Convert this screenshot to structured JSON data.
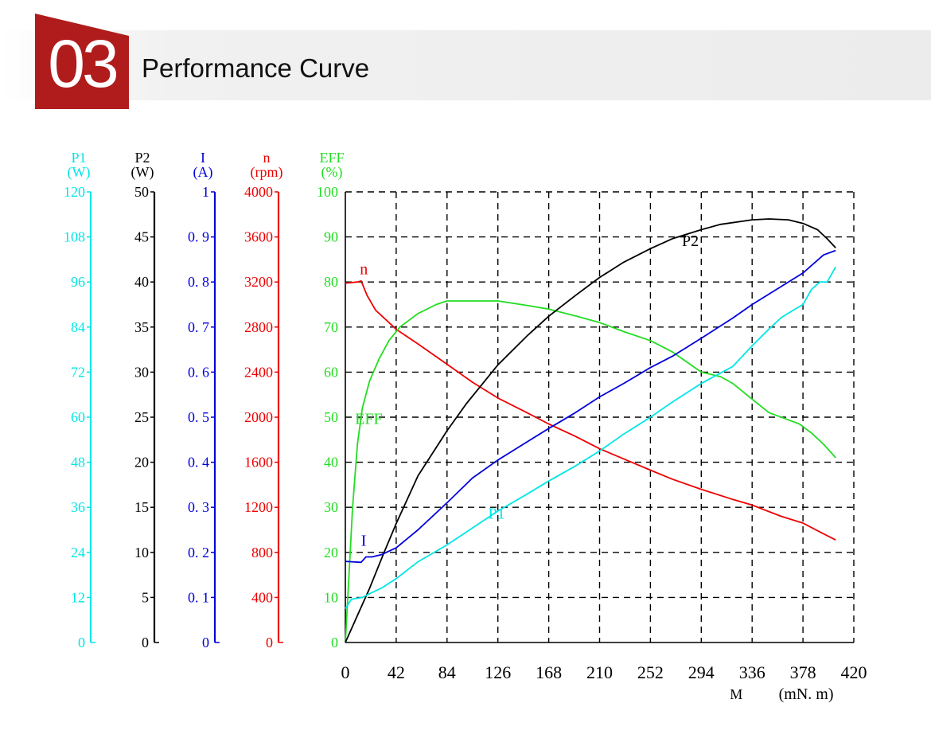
{
  "header": {
    "section_number": "03",
    "title": "Performance Curve",
    "badge_color": "#b01c1c"
  },
  "chart_data": {
    "type": "line",
    "grid": "dashed",
    "x_axis": {
      "ticks": [
        "0",
        "42",
        "84",
        "126",
        "168",
        "210",
        "252",
        "294",
        "336",
        "378",
        "420"
      ],
      "label": "M",
      "unit": "(mN. m)",
      "range": [
        0,
        420
      ]
    },
    "y_axes": [
      {
        "id": "P1",
        "label": "P1",
        "unit": "(W)",
        "color": "#00e6e6",
        "range": [
          0,
          120
        ],
        "ticks": [
          "0",
          "12",
          "24",
          "36",
          "48",
          "60",
          "72",
          "84",
          "96",
          "108",
          "120"
        ]
      },
      {
        "id": "P2",
        "label": "P2",
        "unit": "(W)",
        "color": "#000000",
        "range": [
          0,
          50
        ],
        "ticks": [
          "0",
          "5",
          "10",
          "15",
          "20",
          "25",
          "30",
          "35",
          "40",
          "45",
          "50"
        ]
      },
      {
        "id": "I",
        "label": "I",
        "unit": "(A)",
        "color": "#0000dd",
        "range": [
          0,
          1
        ],
        "ticks": [
          "0",
          "0. 1",
          "0. 2",
          "0. 3",
          "0. 4",
          "0. 5",
          "0. 6",
          "0. 7",
          "0. 8",
          "0. 9",
          "1"
        ]
      },
      {
        "id": "n",
        "label": "n",
        "unit": "(rpm)",
        "color": "#ee0000",
        "range": [
          0,
          4000
        ],
        "ticks": [
          "0",
          "400",
          "800",
          "1200",
          "1600",
          "2000",
          "2400",
          "2800",
          "3200",
          "3600",
          "4000"
        ]
      },
      {
        "id": "EFF",
        "label": "EFF",
        "unit": "(%)",
        "color": "#22dd22",
        "range": [
          0,
          100
        ],
        "ticks": [
          "0",
          "10",
          "20",
          "30",
          "40",
          "50",
          "60",
          "70",
          "80",
          "90",
          "100"
        ]
      }
    ],
    "series": [
      {
        "name": "n",
        "axis": "n",
        "color": "#ee0000",
        "label_at": [
          12,
          3270
        ],
        "points": [
          [
            0,
            3190
          ],
          [
            10,
            3200
          ],
          [
            13,
            3210
          ],
          [
            18,
            3080
          ],
          [
            25,
            2950
          ],
          [
            35,
            2850
          ],
          [
            42,
            2780
          ],
          [
            60,
            2650
          ],
          [
            84,
            2470
          ],
          [
            105,
            2310
          ],
          [
            126,
            2170
          ],
          [
            150,
            2040
          ],
          [
            168,
            1940
          ],
          [
            190,
            1830
          ],
          [
            210,
            1720
          ],
          [
            230,
            1630
          ],
          [
            252,
            1530
          ],
          [
            270,
            1450
          ],
          [
            294,
            1360
          ],
          [
            320,
            1270
          ],
          [
            336,
            1220
          ],
          [
            360,
            1120
          ],
          [
            378,
            1060
          ],
          [
            394,
            970
          ],
          [
            405,
            910
          ]
        ]
      },
      {
        "name": "EFF",
        "axis": "EFF",
        "color": "#22dd22",
        "label_at": [
          8,
          48.5
        ],
        "points": [
          [
            0,
            0
          ],
          [
            3,
            15
          ],
          [
            6,
            30
          ],
          [
            10,
            44
          ],
          [
            14,
            52
          ],
          [
            20,
            58
          ],
          [
            28,
            63
          ],
          [
            36,
            67
          ],
          [
            45,
            70
          ],
          [
            60,
            73
          ],
          [
            75,
            75
          ],
          [
            84,
            75.8
          ],
          [
            100,
            75.8
          ],
          [
            126,
            75.8
          ],
          [
            150,
            74.8
          ],
          [
            168,
            74
          ],
          [
            190,
            72.5
          ],
          [
            210,
            71
          ],
          [
            230,
            69
          ],
          [
            252,
            67
          ],
          [
            270,
            64.5
          ],
          [
            294,
            60
          ],
          [
            310,
            59
          ],
          [
            320,
            57.5
          ],
          [
            336,
            54
          ],
          [
            350,
            51
          ],
          [
            365,
            49.5
          ],
          [
            375,
            48.5
          ],
          [
            385,
            46.5
          ],
          [
            395,
            44
          ],
          [
            405,
            41
          ]
        ]
      },
      {
        "name": "P2",
        "axis": "P2",
        "color": "#000000",
        "label_at": [
          278,
          44
        ],
        "points": [
          [
            0,
            0
          ],
          [
            10,
            3
          ],
          [
            20,
            6
          ],
          [
            32,
            10
          ],
          [
            42,
            13.2
          ],
          [
            60,
            18.5
          ],
          [
            84,
            23.5
          ],
          [
            100,
            26.5
          ],
          [
            126,
            30.8
          ],
          [
            150,
            34
          ],
          [
            168,
            36.2
          ],
          [
            190,
            38.5
          ],
          [
            210,
            40.5
          ],
          [
            230,
            42.2
          ],
          [
            252,
            43.7
          ],
          [
            270,
            44.8
          ],
          [
            294,
            45.8
          ],
          [
            310,
            46.4
          ],
          [
            336,
            46.9
          ],
          [
            350,
            47
          ],
          [
            366,
            46.9
          ],
          [
            378,
            46.5
          ],
          [
            390,
            45.8
          ],
          [
            398,
            44.8
          ],
          [
            405,
            43.8
          ]
        ]
      },
      {
        "name": "I",
        "axis": "I",
        "color": "#0000dd",
        "label_at": [
          13,
          0.215
        ],
        "points": [
          [
            0,
            0.18
          ],
          [
            13,
            0.178
          ],
          [
            17,
            0.19
          ],
          [
            22,
            0.19
          ],
          [
            30,
            0.195
          ],
          [
            42,
            0.21
          ],
          [
            60,
            0.25
          ],
          [
            84,
            0.31
          ],
          [
            105,
            0.365
          ],
          [
            126,
            0.405
          ],
          [
            150,
            0.445
          ],
          [
            168,
            0.475
          ],
          [
            190,
            0.51
          ],
          [
            210,
            0.545
          ],
          [
            230,
            0.575
          ],
          [
            252,
            0.61
          ],
          [
            270,
            0.635
          ],
          [
            294,
            0.675
          ],
          [
            320,
            0.72
          ],
          [
            336,
            0.75
          ],
          [
            360,
            0.79
          ],
          [
            378,
            0.82
          ],
          [
            395,
            0.86
          ],
          [
            405,
            0.87
          ]
        ]
      },
      {
        "name": "P1",
        "axis": "P1",
        "color": "#00e6e6",
        "label_at": [
          118,
          33
        ],
        "points": [
          [
            0,
            9
          ],
          [
            5,
            11.5
          ],
          [
            14,
            12
          ],
          [
            20,
            13
          ],
          [
            30,
            14.5
          ],
          [
            42,
            17
          ],
          [
            60,
            21.5
          ],
          [
            84,
            26
          ],
          [
            105,
            30.5
          ],
          [
            126,
            35
          ],
          [
            150,
            39.5
          ],
          [
            168,
            43
          ],
          [
            190,
            47
          ],
          [
            210,
            51
          ],
          [
            230,
            55.5
          ],
          [
            252,
            60
          ],
          [
            270,
            64
          ],
          [
            294,
            69
          ],
          [
            320,
            73.5
          ],
          [
            336,
            79
          ],
          [
            350,
            83.5
          ],
          [
            360,
            86.5
          ],
          [
            370,
            88.5
          ],
          [
            378,
            90
          ],
          [
            385,
            94
          ],
          [
            392,
            96
          ],
          [
            398,
            96
          ],
          [
            405,
            100
          ]
        ]
      }
    ]
  }
}
